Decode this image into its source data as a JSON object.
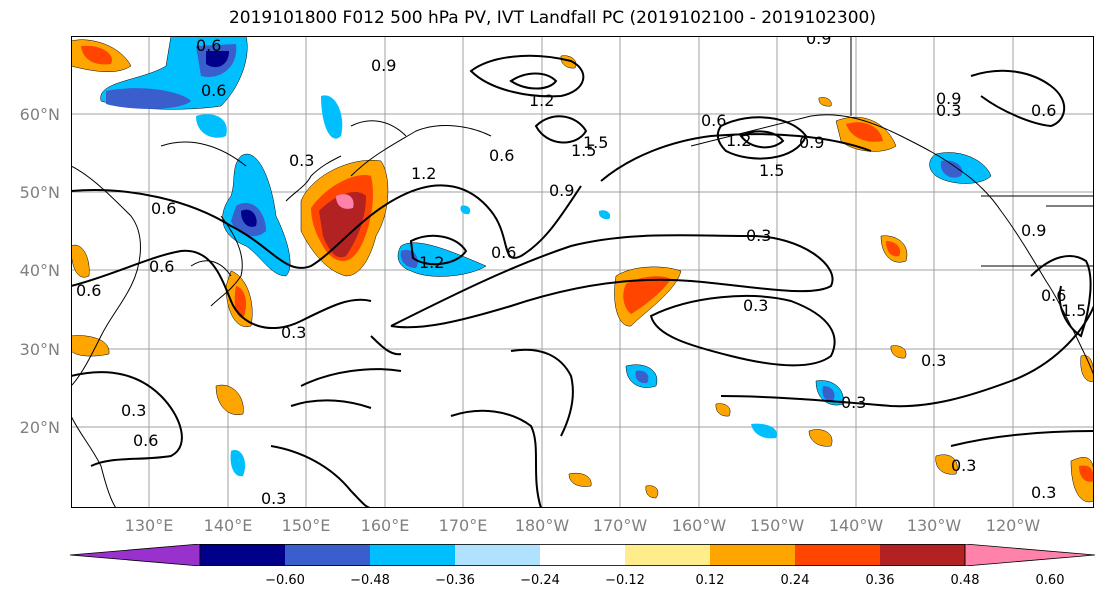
{
  "title": "2019101800 F012 500 hPa PV, IVT Landfall PC (2019102100 - 2019102300)",
  "lat_ticks": [
    "60°N",
    "50°N",
    "40°N",
    "30°N",
    "20°N"
  ],
  "lon_ticks": [
    "130°E",
    "140°E",
    "150°E",
    "160°E",
    "170°E",
    "180°W",
    "170°W",
    "160°W",
    "150°W",
    "140°W",
    "130°W",
    "120°W"
  ],
  "contour_labels": [
    "0.6",
    "0.9",
    "0.9",
    "0.9",
    "0.6",
    "0.3",
    "1.2",
    "0.6",
    "1.5",
    "1.2",
    "0.6",
    "1.5",
    "1.2",
    "0.9",
    "0.6",
    "0.9",
    "1.5",
    "1.2",
    "0.6",
    "0.3",
    "0.6",
    "0.6",
    "0.3",
    "0.3",
    "0.3",
    "0.3",
    "0.3",
    "0.6",
    "0.3",
    "0.3",
    "0.3",
    "0.3",
    "0.9",
    "0.6",
    "1.5",
    "0.6"
  ],
  "colorbar": {
    "ticks": [
      "−0.60",
      "−0.48",
      "−0.36",
      "−0.24",
      "−0.12",
      "0.12",
      "0.24",
      "0.36",
      "0.48",
      "0.60"
    ],
    "colors": [
      "#9932cc",
      "#00008b",
      "#3a5fcd",
      "#00bfff",
      "#b0e2ff",
      "#ffffff",
      "#ffec8b",
      "#ffa500",
      "#ff4500",
      "#b22222",
      "#ff82ab"
    ]
  }
}
